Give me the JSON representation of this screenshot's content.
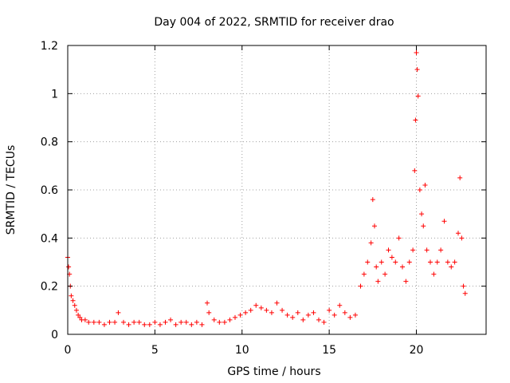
{
  "chart_data": {
    "type": "scatter",
    "title": "Day 004 of 2022, SRMTID for receiver drao",
    "xlabel": "GPS time / hours",
    "ylabel": "SRMTID / TECUs",
    "xlim": [
      0,
      24
    ],
    "ylim": [
      0,
      1.2
    ],
    "x_ticks": [
      0,
      5,
      10,
      15,
      20
    ],
    "x_tick_labels": [
      "0",
      "5",
      "10",
      "15",
      "20"
    ],
    "y_ticks": [
      0,
      0.2,
      0.4,
      0.6,
      0.8,
      1,
      1.2
    ],
    "y_tick_labels": [
      "0",
      "0.2",
      "0.4",
      "0.6",
      "0.8",
      "1",
      "1.2"
    ],
    "grid": true,
    "marker": "+",
    "color": "#ff0000",
    "series": [
      {
        "name": "SRMTID",
        "x": [
          0.0,
          0.05,
          0.1,
          0.15,
          0.2,
          0.3,
          0.4,
          0.5,
          0.6,
          0.7,
          0.8,
          1.0,
          1.2,
          1.5,
          1.8,
          2.1,
          2.4,
          2.7,
          2.9,
          3.2,
          3.5,
          3.8,
          4.1,
          4.4,
          4.7,
          5.0,
          5.3,
          5.6,
          5.9,
          6.2,
          6.5,
          6.8,
          7.1,
          7.4,
          7.7,
          8.0,
          8.1,
          8.4,
          8.7,
          9.0,
          9.3,
          9.6,
          9.9,
          10.2,
          10.5,
          10.8,
          11.1,
          11.4,
          11.7,
          12.0,
          12.3,
          12.6,
          12.9,
          13.2,
          13.5,
          13.8,
          14.1,
          14.4,
          14.7,
          15.0,
          15.3,
          15.6,
          15.9,
          16.2,
          16.5,
          16.8,
          17.0,
          17.2,
          17.4,
          17.5,
          17.6,
          17.7,
          17.8,
          18.0,
          18.2,
          18.4,
          18.6,
          18.8,
          19.0,
          19.2,
          19.4,
          19.6,
          19.8,
          19.9,
          19.95,
          20.0,
          20.05,
          20.1,
          20.2,
          20.3,
          20.4,
          20.5,
          20.6,
          20.8,
          21.0,
          21.2,
          21.4,
          21.6,
          21.8,
          22.0,
          22.2,
          22.4,
          22.5,
          22.6,
          22.7,
          22.8
        ],
        "y": [
          0.32,
          0.28,
          0.25,
          0.2,
          0.16,
          0.14,
          0.12,
          0.1,
          0.08,
          0.07,
          0.06,
          0.06,
          0.05,
          0.05,
          0.05,
          0.04,
          0.05,
          0.05,
          0.09,
          0.05,
          0.04,
          0.05,
          0.05,
          0.04,
          0.04,
          0.05,
          0.04,
          0.05,
          0.06,
          0.04,
          0.05,
          0.05,
          0.04,
          0.05,
          0.04,
          0.13,
          0.09,
          0.06,
          0.05,
          0.05,
          0.06,
          0.07,
          0.08,
          0.09,
          0.1,
          0.12,
          0.11,
          0.1,
          0.09,
          0.13,
          0.1,
          0.08,
          0.07,
          0.09,
          0.06,
          0.08,
          0.09,
          0.06,
          0.05,
          0.1,
          0.08,
          0.12,
          0.09,
          0.07,
          0.08,
          0.2,
          0.25,
          0.3,
          0.38,
          0.56,
          0.45,
          0.28,
          0.22,
          0.3,
          0.25,
          0.35,
          0.32,
          0.3,
          0.4,
          0.28,
          0.22,
          0.3,
          0.35,
          0.68,
          0.89,
          1.17,
          1.1,
          0.99,
          0.6,
          0.5,
          0.45,
          0.62,
          0.35,
          0.3,
          0.25,
          0.3,
          0.35,
          0.47,
          0.3,
          0.28,
          0.3,
          0.42,
          0.65,
          0.4,
          0.2,
          0.17
        ]
      }
    ]
  }
}
